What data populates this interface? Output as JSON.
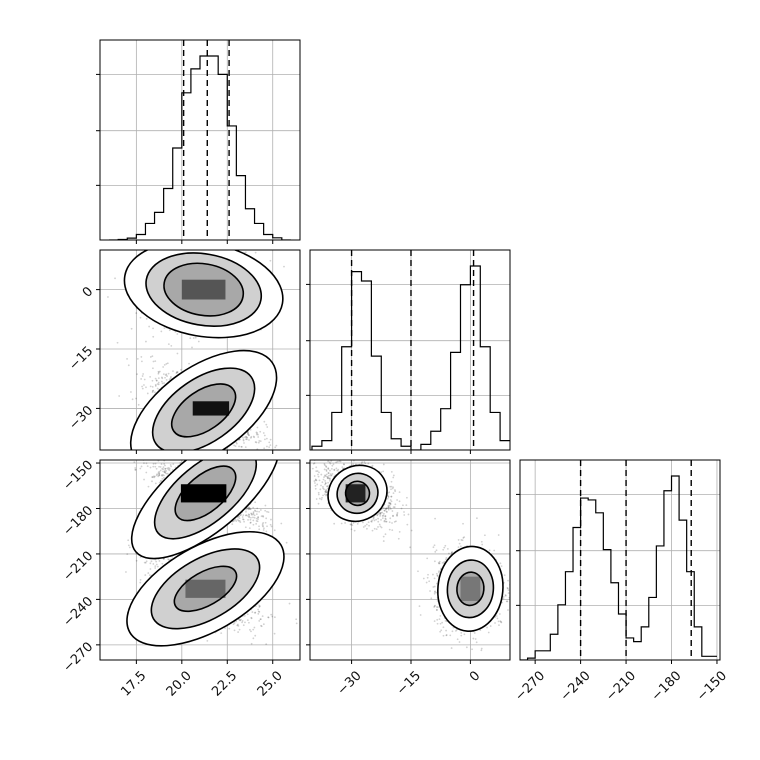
{
  "chart_data": {
    "type": "corner",
    "grid": true,
    "parameters": [
      {
        "id": "p0",
        "range": [
          15.5,
          26.5
        ],
        "ticks": [
          17.5,
          20.0,
          22.5,
          25.0
        ],
        "tick_labels": [
          "17.5",
          "20.0",
          "22.5",
          "25.0"
        ],
        "quantiles": [
          20.1,
          21.4,
          22.6
        ],
        "hist": {
          "bin_edges": [
            16.0,
            16.5,
            17.0,
            17.5,
            18.0,
            18.5,
            19.0,
            19.5,
            20.0,
            20.5,
            21.0,
            21.5,
            22.0,
            22.5,
            23.0,
            23.5,
            24.0,
            24.5,
            25.0,
            25.5,
            26.0
          ],
          "counts": [
            0.0,
            0.003,
            0.01,
            0.03,
            0.09,
            0.15,
            0.28,
            0.5,
            0.8,
            0.93,
            1.0,
            1.0,
            0.9,
            0.62,
            0.35,
            0.17,
            0.09,
            0.03,
            0.012,
            0.0
          ]
        }
      },
      {
        "id": "p1",
        "range": [
          -40.5,
          10.0
        ],
        "ticks": [
          -30,
          -15,
          0
        ],
        "tick_labels": [
          "−30",
          "−15",
          "0"
        ],
        "quantiles": [
          -30.0,
          -15.0,
          0.8
        ],
        "hist": {
          "bin_edges": [
            -40.0,
            -37.5,
            -35.0,
            -32.5,
            -30.0,
            -27.5,
            -25.0,
            -22.5,
            -20.0,
            -17.5,
            -15.0,
            -12.5,
            -10.0,
            -7.5,
            -5.0,
            -2.5,
            0.0,
            2.5,
            5.0,
            7.5,
            10.0
          ],
          "counts": [
            0.02,
            0.05,
            0.2,
            0.55,
            0.95,
            0.9,
            0.5,
            0.2,
            0.06,
            0.02,
            0.0,
            0.03,
            0.1,
            0.22,
            0.52,
            0.88,
            0.98,
            0.55,
            0.2,
            0.05
          ]
        }
      },
      {
        "id": "p2",
        "range": [
          -280,
          -148
        ],
        "ticks": [
          -270,
          -240,
          -210,
          -180,
          -150
        ],
        "tick_labels": [
          "−270",
          "−240",
          "−210",
          "−180",
          "−150"
        ],
        "quantiles": [
          -240.0,
          -210.0,
          -167.0
        ],
        "hist": {
          "bin_edges": [
            -280,
            -275,
            -270,
            -265,
            -260,
            -255,
            -250,
            -245,
            -240,
            -235,
            -230,
            -225,
            -220,
            -215,
            -210,
            -205,
            -200,
            -195,
            -190,
            -185,
            -180,
            -175,
            -170,
            -165,
            -160,
            -155,
            -150
          ],
          "counts": [
            0.0,
            0.01,
            0.05,
            0.05,
            0.14,
            0.3,
            0.48,
            0.72,
            0.88,
            0.87,
            0.8,
            0.6,
            0.42,
            0.25,
            0.12,
            0.1,
            0.18,
            0.34,
            0.62,
            0.92,
            1.0,
            0.76,
            0.48,
            0.18,
            0.02,
            0.02
          ]
        }
      }
    ],
    "pairs": [
      {
        "x": "p0",
        "y": "p1",
        "clusters": [
          {
            "center": [
              21.2,
              0.0
            ],
            "sx": 1.4,
            "sy": 4.6,
            "corr": 0.15,
            "n": 1400
          },
          {
            "center": [
              21.2,
              -30.5
            ],
            "sx": 1.4,
            "sy": 4.6,
            "corr": -0.6,
            "n": 1400
          }
        ],
        "peaks": [
          {
            "x": 21.2,
            "y": 0.0,
            "w": 2.4,
            "h": 5.0,
            "shade": "#555555"
          },
          {
            "x": 21.6,
            "y": -30.0,
            "w": 2.0,
            "h": 3.6,
            "shade": "#111111"
          }
        ],
        "levels": [
          {
            "cluster": 0,
            "rx": 2.2,
            "ry": 6.5,
            "rot": 10
          },
          {
            "cluster": 0,
            "rx": 3.2,
            "ry": 9.0,
            "rot": 10
          },
          {
            "cluster": 0,
            "rx": 4.4,
            "ry": 11.8,
            "rot": 10
          },
          {
            "cluster": 1,
            "rx": 2.0,
            "ry": 5.0,
            "rot": -35
          },
          {
            "cluster": 1,
            "rx": 3.2,
            "ry": 8.0,
            "rot": -35
          },
          {
            "cluster": 1,
            "rx": 4.6,
            "ry": 11.0,
            "rot": -35
          }
        ]
      },
      {
        "x": "p0",
        "y": "p2",
        "clusters": [
          {
            "center": [
              21.3,
              -170.0
            ],
            "sx": 1.4,
            "sy": 9.0,
            "corr": -0.85,
            "n": 1400
          },
          {
            "center": [
              21.3,
              -233.0
            ],
            "sx": 1.4,
            "sy": 12.0,
            "corr": -0.55,
            "n": 1400
          }
        ],
        "peaks": [
          {
            "x": 21.2,
            "y": -170.0,
            "w": 2.5,
            "h": 12.0,
            "shade": "#000000"
          },
          {
            "x": 21.3,
            "y": -233.0,
            "w": 2.2,
            "h": 12.0,
            "shade": "#666666"
          }
        ],
        "levels": [
          {
            "cluster": 0,
            "rx": 2.0,
            "ry": 12.0,
            "rot": -40
          },
          {
            "cluster": 0,
            "rx": 3.4,
            "ry": 19.0,
            "rot": -40
          },
          {
            "cluster": 0,
            "rx": 5.0,
            "ry": 25.0,
            "rot": -40
          },
          {
            "cluster": 1,
            "rx": 1.9,
            "ry": 11.0,
            "rot": -30
          },
          {
            "cluster": 1,
            "rx": 3.3,
            "ry": 20.0,
            "rot": -30
          },
          {
            "cluster": 1,
            "rx": 4.8,
            "ry": 28.0,
            "rot": -30
          }
        ]
      },
      {
        "x": "p1",
        "y": "p2",
        "clusters": [
          {
            "center": [
              -28.5,
              -170.0
            ],
            "sx": 4.5,
            "sy": 10.0,
            "corr": -0.4,
            "n": 1300
          },
          {
            "center": [
              0.0,
              -233.0
            ],
            "sx": 4.5,
            "sy": 13.0,
            "corr": 0.0,
            "n": 1300
          }
        ],
        "peaks": [
          {
            "x": -29.0,
            "y": -170.0,
            "w": 5.0,
            "h": 12.0,
            "shade": "#222222"
          },
          {
            "x": 0.0,
            "y": -233.0,
            "w": 5.0,
            "h": 16.0,
            "shade": "#777777"
          }
        ],
        "levels": [
          {
            "cluster": 0,
            "rx": 3.0,
            "ry": 8.0,
            "rot": -30
          },
          {
            "cluster": 0,
            "rx": 5.2,
            "ry": 13.0,
            "rot": -30
          },
          {
            "cluster": 0,
            "rx": 7.6,
            "ry": 18.0,
            "rot": -30
          },
          {
            "cluster": 1,
            "rx": 3.4,
            "ry": 11.0,
            "rot": 5
          },
          {
            "cluster": 1,
            "rx": 5.8,
            "ry": 19.0,
            "rot": 5
          },
          {
            "cluster": 1,
            "rx": 8.2,
            "ry": 28.0,
            "rot": 5
          }
        ]
      }
    ]
  }
}
